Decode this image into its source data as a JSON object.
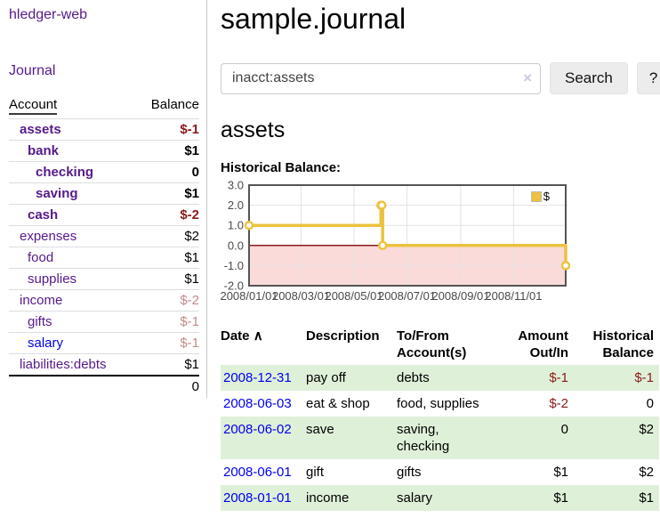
{
  "colors": {
    "link_purple": "#551a8b",
    "link_blue": "#0000ee",
    "negative_strong": "#8b1a1a",
    "negative_soft": "#c48a8a",
    "row_shade_green": "#dff0d8",
    "series_yellow": "#edc240",
    "chart_border": "#545454"
  },
  "sidebar": {
    "brand": "hledger-web",
    "nav_journal": "Journal",
    "accounts": {
      "header_account": "Account",
      "header_balance": "Balance",
      "rows": [
        {
          "name": "assets",
          "depth": 1,
          "bold": true,
          "balance": "$-1",
          "balance_style": "neg-strong"
        },
        {
          "name": "bank",
          "depth": 2,
          "bold": true,
          "balance": "$1",
          "balance_style": ""
        },
        {
          "name": "checking",
          "depth": 3,
          "bold": true,
          "balance": "0",
          "balance_style": ""
        },
        {
          "name": "saving",
          "depth": 3,
          "bold": true,
          "balance": "$1",
          "balance_style": ""
        },
        {
          "name": "cash",
          "depth": 2,
          "bold": true,
          "balance": "$-2",
          "balance_style": "neg-strong"
        },
        {
          "name": "expenses",
          "depth": 1,
          "bold": false,
          "balance": "$2",
          "balance_style": ""
        },
        {
          "name": "food",
          "depth": 2,
          "bold": false,
          "balance": "$1",
          "balance_style": ""
        },
        {
          "name": "supplies",
          "depth": 2,
          "bold": false,
          "balance": "$1",
          "balance_style": ""
        },
        {
          "name": "income",
          "depth": 1,
          "bold": false,
          "balance": "$-2",
          "balance_style": "neg-soft"
        },
        {
          "name": "gifts",
          "depth": 2,
          "bold": false,
          "balance": "$-1",
          "balance_style": "neg-soft"
        },
        {
          "name": "salary",
          "depth": 2,
          "bold": false,
          "balance": "$-1",
          "balance_style": "neg-soft",
          "link_blue": true
        },
        {
          "name": "liabilities:debts",
          "depth": 1,
          "bold": false,
          "balance": "$1",
          "balance_style": ""
        }
      ],
      "total": "0"
    }
  },
  "main": {
    "title": "sample.journal",
    "search": {
      "value": "inacct:assets",
      "clear_icon": "×",
      "button_label": "Search",
      "help_label": "?"
    },
    "account_heading": "assets",
    "chart_label": "Historical Balance:",
    "register": {
      "headers": {
        "date": "Date",
        "sort_icon": "∧",
        "description": "Description",
        "accounts": "To/From Account(s)",
        "amount": "Amount Out/In",
        "balance": "Historical Balance"
      },
      "rows": [
        {
          "date": "2008-12-31",
          "description": "pay off",
          "accounts": "debts",
          "amount": "$-1",
          "amount_negative": true,
          "balance": "$-1",
          "balance_negative": true
        },
        {
          "date": "2008-06-03",
          "description": "eat & shop",
          "accounts": "food, supplies",
          "amount": "$-2",
          "amount_negative": true,
          "balance": "0",
          "balance_negative": false
        },
        {
          "date": "2008-06-02",
          "description": "save",
          "accounts": "saving, checking",
          "amount": "0",
          "amount_negative": false,
          "balance": "$2",
          "balance_negative": false
        },
        {
          "date": "2008-06-01",
          "description": "gift",
          "accounts": "gifts",
          "amount": "$1",
          "amount_negative": false,
          "balance": "$2",
          "balance_negative": false
        },
        {
          "date": "2008-01-01",
          "description": "income",
          "accounts": "salary",
          "amount": "$1",
          "amount_negative": false,
          "balance": "$1",
          "balance_negative": false
        }
      ]
    }
  },
  "chart_data": {
    "type": "line",
    "style": "step-after",
    "title": "Historical Balance",
    "legend": "$",
    "legend_position": "top-right",
    "grid": true,
    "series_color": "#edc240",
    "zero_line_color": "#8b1a1a",
    "negative_region_color": "#fbdada",
    "x": [
      "2008-01-01",
      "2008-06-01",
      "2008-06-02",
      "2008-06-03",
      "2008-12-31"
    ],
    "values": [
      1,
      2,
      2,
      0,
      -1
    ],
    "xlim": [
      "2008-01-01",
      "2008-12-31"
    ],
    "ylim": [
      -2,
      3
    ],
    "y_ticks": [
      "3.0",
      "2.0",
      "1.0",
      "0.0",
      "-1.0",
      "-2.0"
    ],
    "x_ticks": [
      "2008/01/01",
      "2008/03/01",
      "2008/05/01",
      "2008/07/01",
      "2008/09/01",
      "2008/11/01"
    ]
  }
}
